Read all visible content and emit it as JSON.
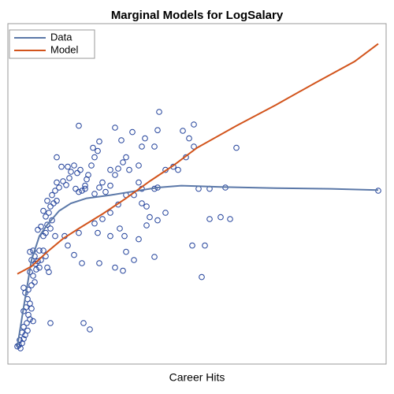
{
  "chart_data": {
    "type": "scatter",
    "title": "Marginal Models for LogSalary",
    "xlabel": "Career Hits",
    "xlim": [
      -100,
      4700
    ],
    "ylim": [
      4,
      9.4
    ],
    "legend": "top-left",
    "points": {
      "color": "#1f3f99",
      "x": [
        20,
        40,
        60,
        80,
        100,
        50,
        120,
        150,
        80,
        100,
        140,
        180,
        220,
        160,
        100,
        130,
        200,
        180,
        150,
        120,
        160,
        200,
        240,
        100,
        220,
        180,
        260,
        300,
        280,
        200,
        240,
        180,
        220,
        300,
        350,
        380,
        320,
        250,
        400,
        420,
        350,
        380,
        280,
        320,
        400,
        440,
        460,
        380,
        420,
        350,
        440,
        480,
        520,
        400,
        460,
        500,
        550,
        520,
        600,
        640,
        680,
        700,
        660,
        580,
        520,
        740,
        780,
        820,
        760,
        800,
        840,
        880,
        900,
        920,
        960,
        1000,
        1040,
        1060,
        980,
        800,
        880,
        1000,
        1060,
        1100,
        1140,
        1200,
        1200,
        1260,
        1300,
        1360,
        1400,
        1440,
        1260,
        1340,
        1480,
        1600,
        1640,
        1800,
        1820,
        1760,
        1560,
        1560,
        1600,
        1760,
        1800,
        1900,
        2000,
        2060,
        2160,
        2120,
        2260,
        2200,
        2260,
        2320,
        2460,
        2660,
        2800,
        2460,
        2600,
        2720,
        2240,
        2400,
        2360,
        1760,
        1320,
        1380,
        1360,
        1260,
        1060,
        840,
        740,
        660,
        620,
        800,
        500,
        860,
        940,
        440,
        1000,
        1040,
        1100,
        1200,
        1300,
        1400,
        1500,
        1600,
        1660,
        1700,
        1800,
        1900,
        1660,
        1560,
        1400,
        1500,
        1200,
        4600
      ],
      "values": [
        4.28,
        4.3,
        4.25,
        4.33,
        4.4,
        4.38,
        4.46,
        4.53,
        4.5,
        4.59,
        4.65,
        4.71,
        4.68,
        4.78,
        4.84,
        4.9,
        4.88,
        4.96,
        5.03,
        5.13,
        5.18,
        5.25,
        5.3,
        5.21,
        5.4,
        5.46,
        5.5,
        5.53,
        5.63,
        5.65,
        5.71,
        5.78,
        5.8,
        5.8,
        5.8,
        5.71,
        5.65,
        5.59,
        5.53,
        5.46,
        6.03,
        6.08,
        6.13,
        6.18,
        6.21,
        6.15,
        6.28,
        6.34,
        6.4,
        6.43,
        6.5,
        6.55,
        6.59,
        6.59,
        6.68,
        6.75,
        6.8,
        6.88,
        6.9,
        6.84,
        6.95,
        7.05,
        7.13,
        7.13,
        7.28,
        7.15,
        7.03,
        7.08,
        6.78,
        6.73,
        6.75,
        6.83,
        6.93,
        7.0,
        7.15,
        7.28,
        7.38,
        7.53,
        7.43,
        7.78,
        6.78,
        6.7,
        6.8,
        6.88,
        6.73,
        6.83,
        7.08,
        7.0,
        7.1,
        7.2,
        7.28,
        7.08,
        7.75,
        7.55,
        7.68,
        7.45,
        7.58,
        7.71,
        8.0,
        7.45,
        7.15,
        6.88,
        6.78,
        6.78,
        6.8,
        7.08,
        7.13,
        7.08,
        7.28,
        7.7,
        7.8,
        7.58,
        7.45,
        6.78,
        6.78,
        6.8,
        7.43,
        6.3,
        6.33,
        6.3,
        5.88,
        5.88,
        5.38,
        5.7,
        6.15,
        6.03,
        5.48,
        5.53,
        5.6,
        5.6,
        5.73,
        5.88,
        6.03,
        6.08,
        6.03,
        4.65,
        4.55,
        4.65,
        6.23,
        6.08,
        6.3,
        6.4,
        6.53,
        6.68,
        6.68,
        6.55,
        6.5,
        6.33,
        6.28,
        6.4,
        6.2,
        5.98,
        5.78,
        5.65,
        6.03,
        6.75
      ]
    },
    "series": [
      {
        "name": "Data",
        "color": "#5b78a8",
        "x": [
          20,
          100,
          200,
          300,
          400,
          550,
          700,
          900,
          1200,
          1500,
          1800,
          2100,
          2600,
          3300,
          4000,
          4600
        ],
        "values": [
          4.28,
          4.9,
          5.65,
          6.03,
          6.21,
          6.43,
          6.55,
          6.63,
          6.68,
          6.74,
          6.8,
          6.83,
          6.81,
          6.79,
          6.78,
          6.76
        ]
      },
      {
        "name": "Model",
        "color": "#d2541c",
        "x": [
          20,
          200,
          400,
          600,
          800,
          1100,
          1400,
          1700,
          2000,
          2300,
          2800,
          3300,
          3800,
          4300,
          4600
        ],
        "values": [
          5.43,
          5.55,
          5.78,
          5.99,
          6.15,
          6.38,
          6.63,
          6.9,
          7.15,
          7.43,
          7.78,
          8.11,
          8.46,
          8.8,
          9.08
        ]
      }
    ]
  }
}
